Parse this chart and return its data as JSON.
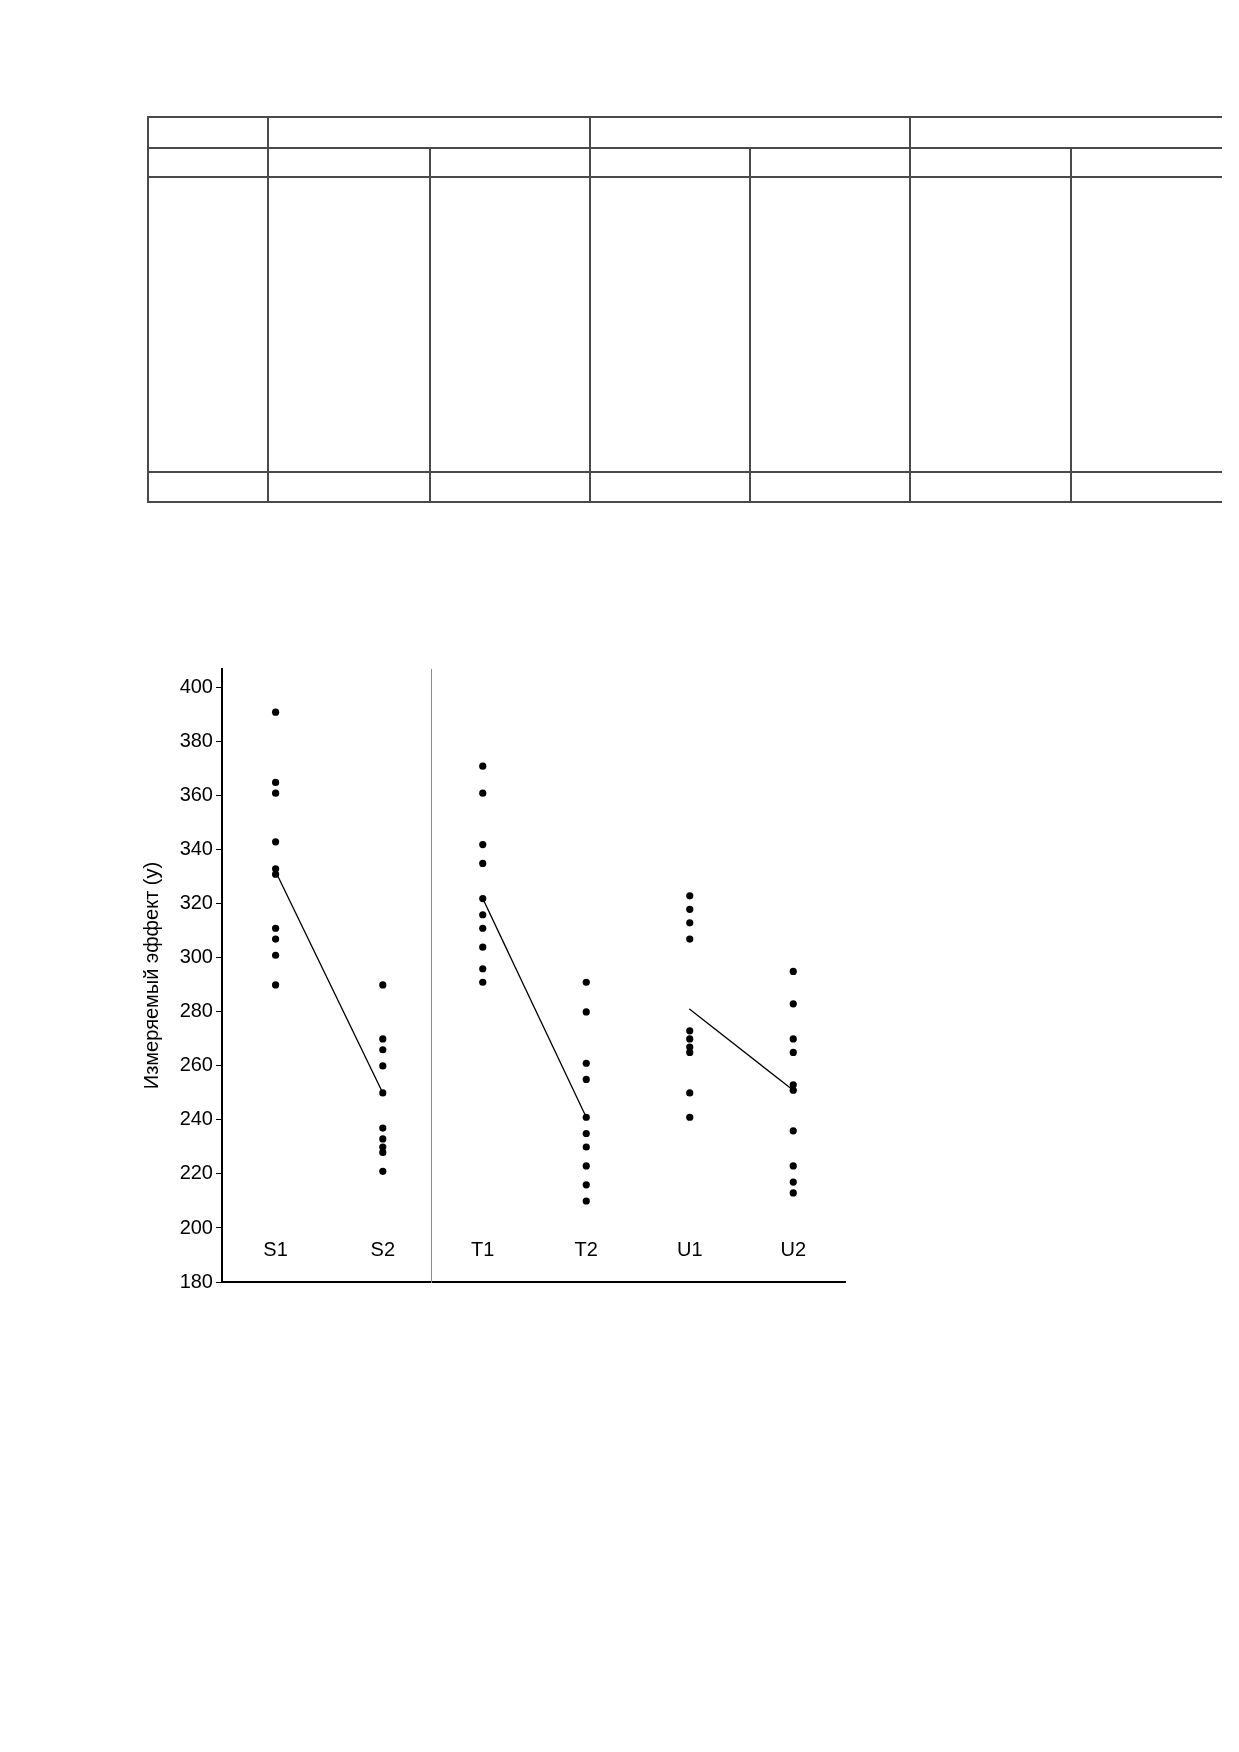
{
  "chart_data": [
    {
      "type": "scatter",
      "ylabel": "Измеряемый эффект (y)",
      "categories": [
        "S1",
        "S2"
      ],
      "ylim": [
        180,
        407
      ],
      "yticks": [
        180,
        200,
        220,
        240,
        260,
        280,
        300,
        320,
        340,
        360,
        380,
        400
      ],
      "grid": false,
      "marker": "circle",
      "series": [
        {
          "color": "#000000",
          "x": [
            "S1",
            "S1",
            "S1",
            "S1",
            "S1",
            "S1",
            "S1",
            "S1",
            "S1",
            "S1",
            "S2",
            "S2",
            "S2",
            "S2",
            "S2",
            "S2",
            "S2",
            "S2",
            "S2",
            "S2"
          ],
          "values": [
            391,
            365,
            361,
            343,
            333,
            331,
            311,
            307,
            301,
            290,
            290,
            270,
            266,
            260,
            250,
            237,
            233,
            230,
            228,
            221
          ]
        },
        {
          "type": "line",
          "color": "#000000",
          "marker": "none",
          "x": [
            "S1",
            "S2"
          ],
          "values": [
            332,
            250
          ]
        }
      ]
    },
    {
      "type": "scatter",
      "categories": [
        "T1",
        "T2",
        "U1",
        "U2"
      ],
      "ylim": [
        180,
        407
      ],
      "tick_labels": "x",
      "grid": false,
      "marker": "circle",
      "series": [
        {
          "color": "#000000",
          "x": [
            "T1",
            "T1",
            "T1",
            "T1",
            "T1",
            "T1",
            "T1",
            "T1",
            "T1",
            "T1",
            "T2",
            "T2",
            "T2",
            "T2",
            "T2",
            "T2",
            "T2",
            "T2",
            "T2",
            "T2",
            "U1",
            "U1",
            "U1",
            "U1",
            "U1",
            "U1",
            "U1",
            "U1",
            "U1",
            "U1",
            "U2",
            "U2",
            "U2",
            "U2",
            "U2",
            "U2",
            "U2",
            "U2",
            "U2",
            "U2"
          ],
          "values": [
            371,
            361,
            342,
            335,
            322,
            316,
            311,
            304,
            296,
            291,
            291,
            280,
            261,
            255,
            241,
            235,
            230,
            223,
            216,
            210,
            323,
            318,
            313,
            307,
            273,
            270,
            267,
            265,
            250,
            241,
            295,
            283,
            270,
            265,
            253,
            251,
            236,
            223,
            217,
            213
          ]
        },
        {
          "type": "line",
          "color": "#000000",
          "marker": "none",
          "x": [
            "T1",
            "T2"
          ],
          "values": [
            322,
            241
          ]
        },
        {
          "type": "line",
          "color": "#000000",
          "marker": "none",
          "x": [
            "U1",
            "U2"
          ],
          "values": [
            281,
            251
          ]
        }
      ]
    }
  ]
}
